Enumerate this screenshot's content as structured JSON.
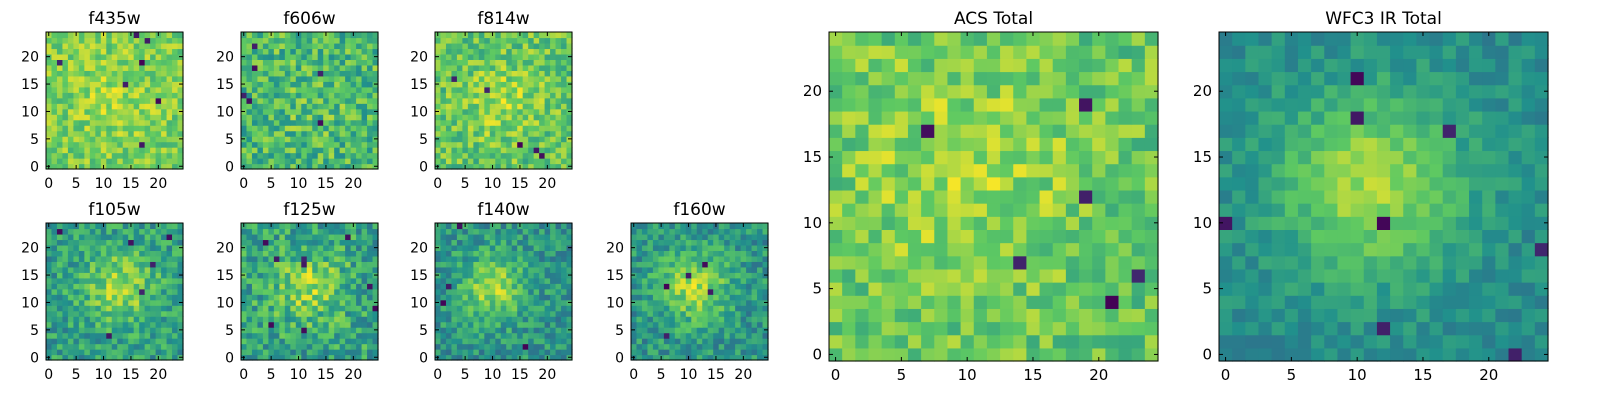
{
  "colormap": {
    "name": "viridis",
    "stops": [
      "#440154",
      "#3b528b",
      "#21918c",
      "#5ec962",
      "#fde725"
    ]
  },
  "chart_data": [
    {
      "type": "heatmap",
      "title": "f435w",
      "grid_size": 25,
      "x_ticks": [
        0,
        5,
        10,
        15,
        20
      ],
      "y_ticks": [
        0,
        5,
        10,
        15,
        20
      ],
      "xlim": [
        -0.5,
        24.5
      ],
      "ylim": [
        -0.5,
        24.5
      ],
      "texture": {
        "center": [
          12,
          13
        ],
        "peak": 0.08,
        "base": 0.78,
        "noise": 0.15,
        "sigma": 5,
        "seed": 11,
        "dark_pixels": 7
      }
    },
    {
      "type": "heatmap",
      "title": "f606w",
      "grid_size": 25,
      "x_ticks": [
        0,
        5,
        10,
        15,
        20
      ],
      "y_ticks": [
        0,
        5,
        10,
        15,
        20
      ],
      "xlim": [
        -0.5,
        24.5
      ],
      "ylim": [
        -0.5,
        24.5
      ],
      "texture": {
        "center": [
          12,
          12
        ],
        "peak": 0.05,
        "base": 0.67,
        "noise": 0.2,
        "sigma": 5,
        "seed": 23,
        "dark_pixels": 6
      }
    },
    {
      "type": "heatmap",
      "title": "f814w",
      "grid_size": 25,
      "x_ticks": [
        0,
        5,
        10,
        15,
        20
      ],
      "y_ticks": [
        0,
        5,
        10,
        15,
        20
      ],
      "xlim": [
        -0.5,
        24.5
      ],
      "ylim": [
        -0.5,
        24.5
      ],
      "texture": {
        "center": [
          12,
          12
        ],
        "peak": 0.12,
        "base": 0.73,
        "noise": 0.17,
        "sigma": 5,
        "seed": 37,
        "dark_pixels": 5
      }
    },
    {
      "type": "heatmap",
      "title": "f105w",
      "grid_size": 25,
      "x_ticks": [
        0,
        5,
        10,
        15,
        20
      ],
      "y_ticks": [
        0,
        5,
        10,
        15,
        20
      ],
      "xlim": [
        -0.5,
        24.5
      ],
      "ylim": [
        -0.5,
        24.5
      ],
      "texture": {
        "center": [
          13,
          13
        ],
        "peak": 0.3,
        "base": 0.56,
        "noise": 0.17,
        "sigma": 4.5,
        "seed": 41,
        "dark_pixels": 6
      }
    },
    {
      "type": "heatmap",
      "title": "f125w",
      "grid_size": 25,
      "x_ticks": [
        0,
        5,
        10,
        15,
        20
      ],
      "y_ticks": [
        0,
        5,
        10,
        15,
        20
      ],
      "xlim": [
        -0.5,
        24.5
      ],
      "ylim": [
        -0.5,
        24.5
      ],
      "texture": {
        "center": [
          12,
          13
        ],
        "peak": 0.25,
        "base": 0.58,
        "noise": 0.2,
        "sigma": 4.5,
        "seed": 53,
        "dark_pixels": 9
      }
    },
    {
      "type": "heatmap",
      "title": "f140w",
      "grid_size": 25,
      "x_ticks": [
        0,
        5,
        10,
        15,
        20
      ],
      "y_ticks": [
        0,
        5,
        10,
        15,
        20
      ],
      "xlim": [
        -0.5,
        24.5
      ],
      "ylim": [
        -0.5,
        24.5
      ],
      "texture": {
        "center": [
          10,
          13
        ],
        "peak": 0.35,
        "base": 0.52,
        "noise": 0.16,
        "sigma": 4,
        "seed": 67,
        "dark_pixels": 4
      }
    },
    {
      "type": "heatmap",
      "title": "f160w",
      "grid_size": 25,
      "x_ticks": [
        0,
        5,
        10,
        15,
        20
      ],
      "y_ticks": [
        0,
        5,
        10,
        15,
        20
      ],
      "xlim": [
        -0.5,
        24.5
      ],
      "ylim": [
        -0.5,
        24.5
      ],
      "texture": {
        "center": [
          11,
          13
        ],
        "peak": 0.36,
        "base": 0.52,
        "noise": 0.16,
        "sigma": 4.5,
        "seed": 71,
        "dark_pixels": 5
      }
    },
    {
      "type": "heatmap",
      "title": "ACS Total",
      "grid_size": 25,
      "x_ticks": [
        0,
        5,
        10,
        15,
        20
      ],
      "y_ticks": [
        0,
        5,
        10,
        15,
        20
      ],
      "xlim": [
        -0.5,
        24.5
      ],
      "ylim": [
        -0.5,
        24.5
      ],
      "texture": {
        "center": [
          10,
          14
        ],
        "peak": 0.12,
        "base": 0.74,
        "noise": 0.15,
        "sigma": 6,
        "seed": 83,
        "dark_pixels": 6
      }
    },
    {
      "type": "heatmap",
      "title": "WFC3 IR Total",
      "grid_size": 25,
      "x_ticks": [
        0,
        5,
        10,
        15,
        20
      ],
      "y_ticks": [
        0,
        5,
        10,
        15,
        20
      ],
      "xlim": [
        -0.5,
        24.5
      ],
      "ylim": [
        -0.5,
        24.5
      ],
      "texture": {
        "center": [
          11,
          13
        ],
        "peak": 0.38,
        "base": 0.48,
        "noise": 0.09,
        "sigma": 5,
        "seed": 97,
        "dark_pixels": 8
      }
    }
  ]
}
